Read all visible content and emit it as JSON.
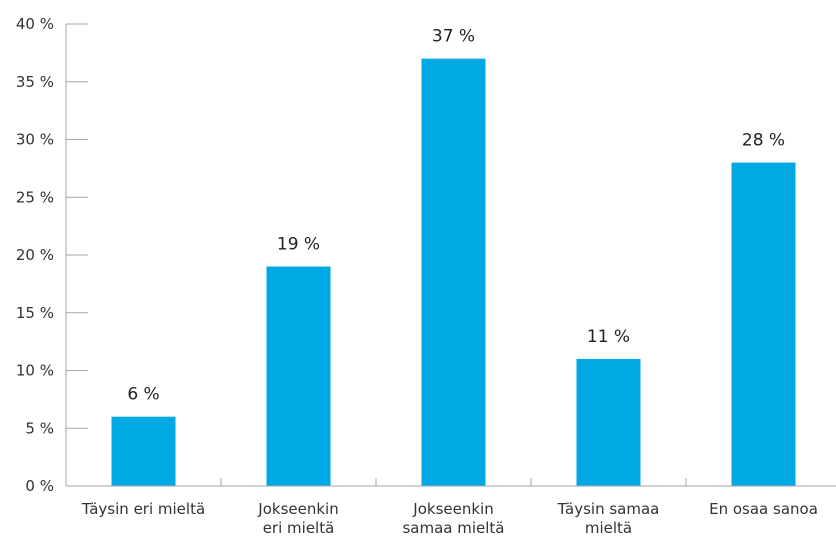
{
  "chart_data": {
    "type": "bar",
    "categories": [
      [
        "Täysin eri mieltä"
      ],
      [
        "Jokseenkin",
        "eri mieltä"
      ],
      [
        "Jokseenkin",
        "samaa mieltä"
      ],
      [
        "Täysin samaa",
        "mieltä"
      ],
      [
        "En osaa sanoa"
      ]
    ],
    "values": [
      6,
      19,
      37,
      11,
      28
    ],
    "data_labels": [
      "6 %",
      "19 %",
      "37 %",
      "11 %",
      "28 %"
    ],
    "y_tick_labels": [
      "0 %",
      "5 %",
      "10 %",
      "15 %",
      "20 %",
      "25 %",
      "30 %",
      "35 %",
      "40 %"
    ],
    "y_ticks": [
      0,
      5,
      10,
      15,
      20,
      25,
      30,
      35,
      40
    ],
    "ylim": [
      0,
      40
    ],
    "grid": false,
    "bar_color": "#00a8e4",
    "axis_color": "#a6a6a6"
  }
}
